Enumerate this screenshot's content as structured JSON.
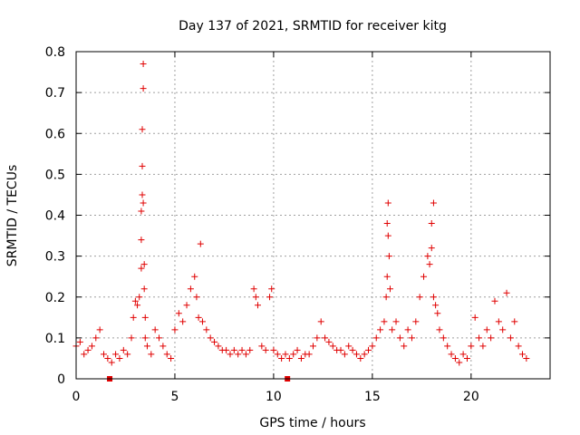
{
  "chart_data": {
    "type": "scatter",
    "title": "Day 137 of 2021, SRMTID for receiver kitg",
    "xlabel": "GPS time / hours",
    "ylabel": "SRMTID / TECUs",
    "xlim": [
      0,
      24
    ],
    "ylim": [
      0,
      0.8
    ],
    "xticks": [
      0,
      5,
      10,
      15,
      20
    ],
    "yticks": [
      0,
      0.1,
      0.2,
      0.3,
      0.4,
      0.5,
      0.6,
      0.7,
      0.8
    ],
    "xtick_labels": [
      "0",
      "5",
      "10",
      "15",
      "20"
    ],
    "ytick_labels": [
      "0",
      "0.1",
      "0.2",
      "0.3",
      "0.4",
      "0.5",
      "0.6",
      "0.7",
      "0.8"
    ],
    "grid": true,
    "marker": "+",
    "series": [
      {
        "name": "SRMTID",
        "color": "#e00000",
        "x": [
          0.0,
          0.2,
          0.4,
          0.6,
          0.8,
          1.0,
          1.2,
          1.4,
          1.6,
          1.8,
          2.0,
          2.2,
          2.4,
          2.6,
          2.8,
          2.9,
          3.0,
          3.1,
          3.2,
          3.3,
          3.3,
          3.3,
          3.35,
          3.35,
          3.35,
          3.4,
          3.4,
          3.4,
          3.45,
          3.45,
          3.5,
          3.5,
          3.6,
          3.8,
          4.0,
          4.2,
          4.4,
          4.6,
          4.8,
          5.0,
          5.2,
          5.4,
          5.6,
          5.8,
          6.0,
          6.1,
          6.2,
          6.3,
          6.4,
          6.6,
          6.8,
          7.0,
          7.2,
          7.4,
          7.6,
          7.8,
          8.0,
          8.2,
          8.4,
          8.6,
          8.8,
          9.0,
          9.1,
          9.2,
          9.4,
          9.6,
          9.8,
          9.9,
          10.0,
          10.2,
          10.4,
          10.6,
          10.8,
          11.0,
          11.2,
          11.4,
          11.6,
          11.8,
          12.0,
          12.2,
          12.4,
          12.6,
          12.8,
          13.0,
          13.2,
          13.4,
          13.6,
          13.8,
          14.0,
          14.2,
          14.4,
          14.6,
          14.8,
          15.0,
          15.2,
          15.4,
          15.6,
          15.7,
          15.75,
          15.75,
          15.8,
          15.8,
          15.85,
          15.9,
          16.0,
          16.2,
          16.4,
          16.6,
          16.8,
          17.0,
          17.2,
          17.4,
          17.6,
          17.8,
          17.9,
          18.0,
          18.0,
          18.1,
          18.1,
          18.2,
          18.3,
          18.4,
          18.6,
          18.8,
          19.0,
          19.2,
          19.4,
          19.6,
          19.8,
          20.0,
          20.2,
          20.4,
          20.6,
          20.8,
          21.0,
          21.2,
          21.4,
          21.6,
          21.8,
          22.0,
          22.2,
          22.4,
          22.6,
          22.8
        ],
        "y": [
          0.08,
          0.09,
          0.06,
          0.07,
          0.08,
          0.1,
          0.12,
          0.06,
          0.05,
          0.04,
          0.06,
          0.05,
          0.07,
          0.06,
          0.1,
          0.15,
          0.19,
          0.18,
          0.2,
          0.27,
          0.34,
          0.41,
          0.45,
          0.52,
          0.61,
          0.71,
          0.77,
          0.43,
          0.28,
          0.22,
          0.15,
          0.1,
          0.08,
          0.06,
          0.12,
          0.1,
          0.08,
          0.06,
          0.05,
          0.12,
          0.16,
          0.14,
          0.18,
          0.22,
          0.25,
          0.2,
          0.15,
          0.33,
          0.14,
          0.12,
          0.1,
          0.09,
          0.08,
          0.07,
          0.07,
          0.06,
          0.07,
          0.06,
          0.07,
          0.06,
          0.07,
          0.22,
          0.2,
          0.18,
          0.08,
          0.07,
          0.2,
          0.22,
          0.07,
          0.06,
          0.05,
          0.06,
          0.05,
          0.06,
          0.07,
          0.05,
          0.06,
          0.06,
          0.08,
          0.1,
          0.14,
          0.1,
          0.09,
          0.08,
          0.07,
          0.07,
          0.06,
          0.08,
          0.07,
          0.06,
          0.05,
          0.06,
          0.07,
          0.08,
          0.1,
          0.12,
          0.14,
          0.2,
          0.25,
          0.38,
          0.43,
          0.35,
          0.3,
          0.22,
          0.12,
          0.14,
          0.1,
          0.08,
          0.12,
          0.1,
          0.14,
          0.2,
          0.25,
          0.3,
          0.28,
          0.32,
          0.38,
          0.43,
          0.2,
          0.18,
          0.16,
          0.12,
          0.1,
          0.08,
          0.06,
          0.05,
          0.04,
          0.06,
          0.05,
          0.08,
          0.15,
          0.1,
          0.08,
          0.12,
          0.1,
          0.19,
          0.14,
          0.12,
          0.21,
          0.1,
          0.14,
          0.08,
          0.06,
          0.05
        ]
      }
    ],
    "special_markers": [
      {
        "name": "data-gap",
        "x": [
          1.7,
          10.7
        ],
        "y": [
          0,
          0
        ],
        "color": "#e00000"
      }
    ]
  }
}
